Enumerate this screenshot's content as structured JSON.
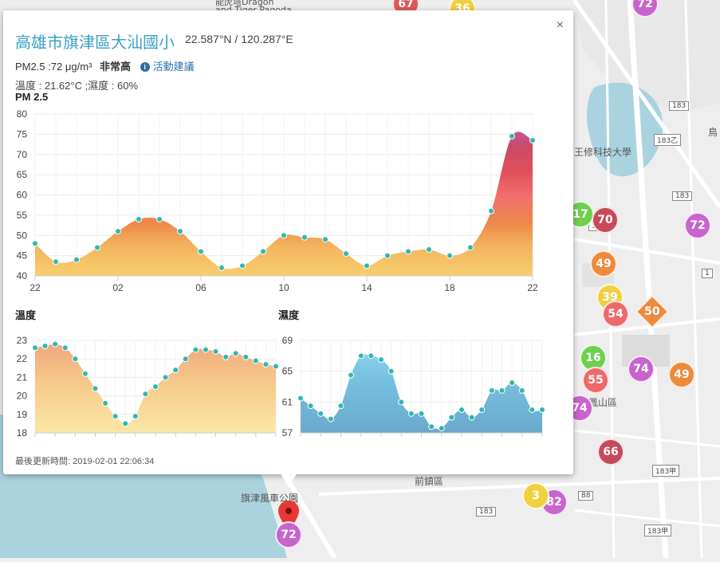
{
  "map": {
    "labels": [
      {
        "text": "前鎮區",
        "x": 520,
        "y": 595
      },
      {
        "text": "旗津風車公園",
        "x": 302,
        "y": 616
      },
      {
        "text": "鳳山區",
        "x": 738,
        "y": 496
      },
      {
        "text": "王修科技大學",
        "x": 716,
        "y": 182
      },
      {
        "text": "能虎塔Dragon",
        "x": 270,
        "y": 2
      },
      {
        "text": "and Tiger Pagoda",
        "x": 270,
        "y": 8
      },
      {
        "text": "鳥",
        "x": 888,
        "y": 157
      }
    ],
    "road_badges": [
      "183",
      "183乙",
      "183",
      "183甲",
      "183",
      "183甲",
      "88",
      "1",
      "1"
    ],
    "markers": [
      {
        "value": "72",
        "color": "#c765cc"
      },
      {
        "value": "36",
        "color": "#f0d040"
      },
      {
        "value": "67",
        "color": "#dc5a5a"
      },
      {
        "value": "17",
        "color": "#6fd04f"
      },
      {
        "value": "70",
        "color": "#c84a58"
      },
      {
        "value": "72",
        "color": "#c765cc"
      },
      {
        "value": "49",
        "color": "#ee8a3c"
      },
      {
        "value": "39",
        "color": "#f0d040"
      },
      {
        "value": "54",
        "color": "#ee6a6a"
      },
      {
        "value": "50",
        "color": "#ee8a3c"
      },
      {
        "value": "16",
        "color": "#6fd04f"
      },
      {
        "value": "55",
        "color": "#ee6a6a"
      },
      {
        "value": "74",
        "color": "#c765cc"
      },
      {
        "value": "49",
        "color": "#ee8a3c"
      },
      {
        "value": "74",
        "color": "#c765cc"
      },
      {
        "value": "66",
        "color": "#c84a58"
      },
      {
        "value": "82",
        "color": "#c765cc"
      },
      {
        "value": "3",
        "color": "#f0d040"
      },
      {
        "value": "72",
        "color": "#c765cc"
      }
    ]
  },
  "popup": {
    "close_label": "×",
    "title": "高雄市旗津區大汕國小",
    "coords": "22.587°N / 120.287°E",
    "pm_text": "PM2.5 :72 μg/m³",
    "pm_level": "非常高",
    "info_icon_glyph": "i",
    "advice_label": "活動建議",
    "temp_humidity": "溫度 : 21.62°C ;濕度 : 60%",
    "updated": "最後更新時間: 2019-02-01 22:06:34"
  },
  "chart_data": [
    {
      "type": "area",
      "title": "PM 2.5",
      "x_tick_labels": [
        "22",
        "02",
        "06",
        "10",
        "14",
        "18",
        "22"
      ],
      "ylim": [
        40,
        80
      ],
      "y_ticks": [
        40,
        45,
        50,
        55,
        60,
        65,
        70,
        75,
        80
      ],
      "grid": true,
      "values": [
        48,
        43.5,
        44,
        47,
        51,
        54,
        54,
        51,
        46,
        42,
        42.5,
        46,
        50,
        49.5,
        49,
        45.5,
        42.5,
        45,
        46,
        46.5,
        45,
        47,
        56,
        74.5,
        73.5
      ]
    },
    {
      "type": "area",
      "title": "溫度",
      "ylim": [
        18,
        23
      ],
      "y_ticks": [
        18,
        19,
        20,
        21,
        22,
        23
      ],
      "grid": true,
      "values": [
        22.6,
        22.7,
        22.8,
        22.6,
        22,
        21.2,
        20.4,
        19.6,
        18.9,
        18.5,
        18.9,
        20.1,
        20.5,
        21,
        21.4,
        22,
        22.5,
        22.5,
        22.4,
        22.1,
        22.3,
        22.1,
        21.9,
        21.7,
        21.6
      ]
    },
    {
      "type": "area",
      "title": "濕度",
      "ylim": [
        57,
        69
      ],
      "y_ticks": [
        57,
        61,
        65,
        69
      ],
      "grid": true,
      "values": [
        61.5,
        60.5,
        59.5,
        58.8,
        60.5,
        64.5,
        67,
        67,
        66.5,
        65,
        61,
        59.5,
        59.5,
        57.8,
        57.6,
        59,
        60,
        59,
        60,
        62.5,
        62.5,
        63.5,
        62.5,
        60,
        60
      ]
    }
  ]
}
